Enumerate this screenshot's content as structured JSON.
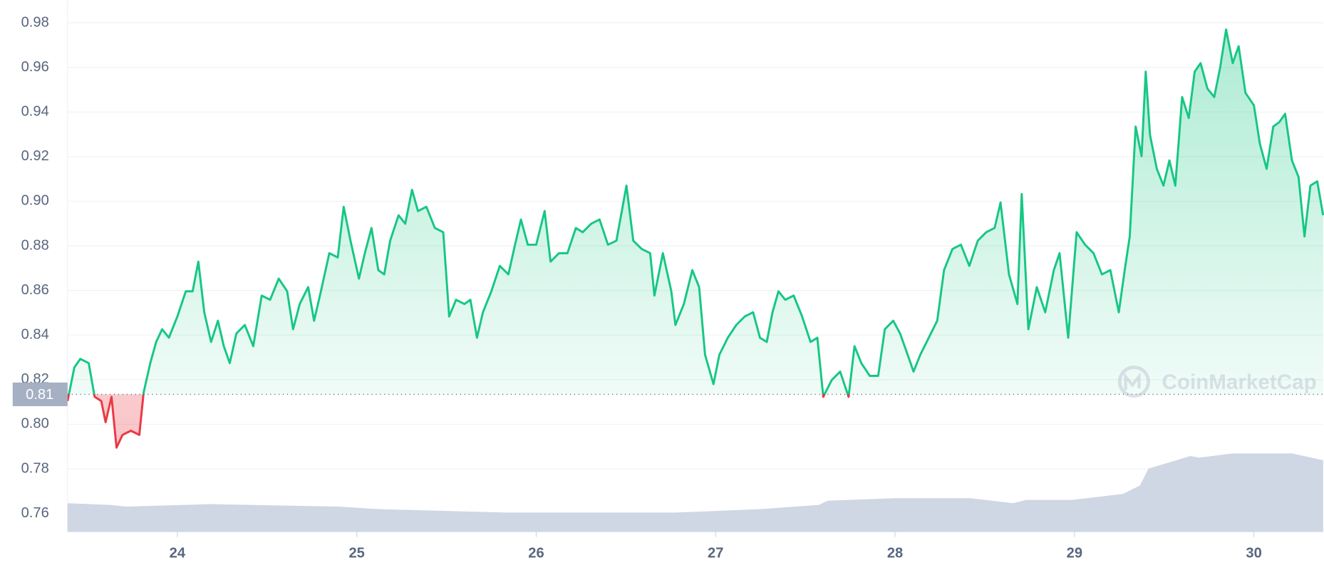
{
  "chart_data": {
    "type": "line",
    "watermark": "CoinMarketCap",
    "xlim": [
      23.388,
      30.386
    ],
    "xticks": [
      24,
      25,
      26,
      27,
      28,
      29,
      30
    ],
    "ylim": [
      0.7517,
      0.9902
    ],
    "yticks": [
      0.76,
      0.78,
      {
        "value": 0.8,
        "label": "0.80"
      },
      0.82,
      0.84,
      0.86,
      0.88,
      {
        "value": 0.9,
        "label": "0.90"
      },
      0.92,
      0.94,
      0.96,
      0.98
    ],
    "grid": true,
    "reference": {
      "value": 0.8134,
      "label": "0.81"
    },
    "up_color": "#16c784",
    "down_color": "#ea3943",
    "series": [
      {
        "color": "#16c784",
        "x": [
          23.388,
          23.426,
          23.459,
          23.506,
          23.539,
          23.576,
          23.6,
          23.633,
          23.661,
          23.694,
          23.741,
          23.788,
          23.812,
          23.849,
          23.882,
          23.915,
          23.953,
          24.0,
          24.047,
          24.085,
          24.117,
          24.15,
          24.188,
          24.226,
          24.259,
          24.292,
          24.329,
          24.376,
          24.423,
          24.47,
          24.517,
          24.565,
          24.612,
          24.645,
          24.682,
          24.729,
          24.762,
          24.8,
          24.847,
          24.894,
          24.927,
          24.965,
          25.012,
          25.045,
          25.082,
          25.12,
          25.153,
          25.186,
          25.233,
          25.27,
          25.308,
          25.341,
          25.388,
          25.435,
          25.482,
          25.515,
          25.553,
          25.6,
          25.633,
          25.67,
          25.703,
          25.75,
          25.797,
          25.845,
          25.882,
          25.915,
          25.953,
          26.0,
          26.047,
          26.08,
          26.127,
          26.174,
          26.221,
          26.259,
          26.306,
          26.353,
          26.4,
          26.447,
          26.503,
          26.541,
          26.588,
          26.635,
          26.659,
          26.706,
          26.753,
          26.776,
          26.823,
          26.87,
          26.908,
          26.941,
          26.988,
          27.021,
          27.068,
          27.115,
          27.162,
          27.209,
          27.247,
          27.285,
          27.317,
          27.35,
          27.388,
          27.435,
          27.482,
          27.529,
          27.567,
          27.6,
          27.647,
          27.694,
          27.741,
          27.774,
          27.812,
          27.859,
          27.906,
          27.943,
          27.99,
          28.028,
          28.07,
          28.103,
          28.141,
          28.188,
          28.235,
          28.273,
          28.32,
          28.367,
          28.414,
          28.461,
          28.508,
          28.555,
          28.588,
          28.635,
          28.682,
          28.706,
          28.743,
          28.79,
          28.837,
          28.885,
          28.917,
          28.965,
          29.012,
          29.059,
          29.106,
          29.153,
          29.2,
          29.247,
          29.28,
          29.308,
          29.341,
          29.374,
          29.397,
          29.421,
          29.459,
          29.496,
          29.529,
          29.562,
          29.6,
          29.637,
          29.67,
          29.703,
          29.741,
          29.779,
          29.812,
          29.845,
          29.882,
          29.915,
          29.953,
          30.0,
          30.033,
          30.071,
          30.108,
          30.141,
          30.174,
          30.212,
          30.249,
          30.282,
          30.315,
          30.353,
          30.386
        ],
        "values": [
          0.8104,
          0.8255,
          0.8293,
          0.8274,
          0.8123,
          0.8104,
          0.8009,
          0.8123,
          0.7895,
          0.7952,
          0.7971,
          0.7952,
          0.8142,
          0.8274,
          0.8369,
          0.8426,
          0.8388,
          0.8483,
          0.8596,
          0.8596,
          0.8729,
          0.8502,
          0.8369,
          0.8464,
          0.835,
          0.8274,
          0.8407,
          0.8445,
          0.835,
          0.8577,
          0.8558,
          0.8653,
          0.8596,
          0.8426,
          0.8539,
          0.8615,
          0.8464,
          0.8596,
          0.8767,
          0.8748,
          0.8975,
          0.8823,
          0.8653,
          0.8767,
          0.888,
          0.8691,
          0.8672,
          0.8823,
          0.8937,
          0.8899,
          0.9051,
          0.8956,
          0.8975,
          0.888,
          0.8861,
          0.8483,
          0.8558,
          0.8539,
          0.8558,
          0.8388,
          0.8502,
          0.8596,
          0.871,
          0.8672,
          0.8805,
          0.8918,
          0.8805,
          0.8805,
          0.8956,
          0.8729,
          0.8767,
          0.8767,
          0.888,
          0.8861,
          0.8899,
          0.8918,
          0.8805,
          0.8823,
          0.907,
          0.8823,
          0.8786,
          0.8767,
          0.8577,
          0.8767,
          0.8596,
          0.8445,
          0.8539,
          0.8691,
          0.8615,
          0.8312,
          0.818,
          0.8312,
          0.8388,
          0.8445,
          0.8483,
          0.8502,
          0.8388,
          0.8369,
          0.8502,
          0.8596,
          0.8558,
          0.8577,
          0.8483,
          0.8369,
          0.8388,
          0.8123,
          0.8198,
          0.8236,
          0.8123,
          0.835,
          0.8274,
          0.8217,
          0.8217,
          0.8426,
          0.8464,
          0.8407,
          0.8312,
          0.8236,
          0.8312,
          0.8388,
          0.8464,
          0.8691,
          0.8786,
          0.8805,
          0.871,
          0.8823,
          0.8861,
          0.888,
          0.8994,
          0.8672,
          0.8539,
          0.9032,
          0.8426,
          0.8615,
          0.8502,
          0.8691,
          0.8767,
          0.8388,
          0.8861,
          0.8805,
          0.8767,
          0.8672,
          0.8691,
          0.8502,
          0.8691,
          0.8842,
          0.9335,
          0.9202,
          0.9581,
          0.9297,
          0.9145,
          0.907,
          0.9183,
          0.907,
          0.9467,
          0.9373,
          0.9581,
          0.9619,
          0.9505,
          0.9467,
          0.96,
          0.977,
          0.9619,
          0.9695,
          0.9486,
          0.943,
          0.9259,
          0.9145,
          0.9335,
          0.9354,
          0.9392,
          0.9183,
          0.9108,
          0.8842,
          0.907,
          0.9089,
          0.8937
        ]
      },
      {
        "color": "#cfd6e4",
        "axis": "y2",
        "x": [
          23.388,
          23.623,
          23.717,
          24.188,
          24.894,
          25.129,
          25.835,
          26.776,
          27.247,
          27.576,
          27.624,
          28.0,
          28.423,
          28.659,
          28.729,
          28.988,
          29.27,
          29.365,
          29.412,
          29.647,
          29.694,
          29.882,
          30.212,
          30.386
        ],
        "values": [
          34,
          32,
          30,
          33,
          30,
          27,
          23,
          23,
          27,
          32,
          37,
          40,
          40,
          34,
          38,
          38,
          45,
          55,
          75,
          90,
          88,
          93,
          93,
          85
        ]
      }
    ],
    "y2lim": [
      0,
      630
    ]
  }
}
